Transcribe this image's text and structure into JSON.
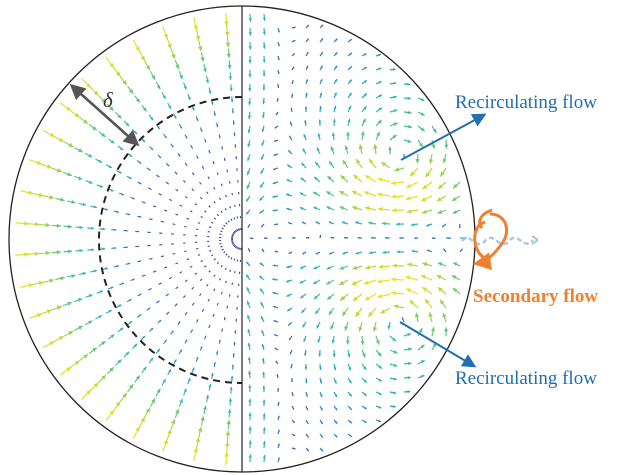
{
  "annotations": {
    "delta_symbol": "δ",
    "recirculating_upper": "Recirculating flow",
    "recirculating_lower": "Recirculating flow",
    "secondary": "Secondary flow"
  },
  "colors": {
    "annotation_blue": "#1f6fb2",
    "secondary_orange": "#f07f2e",
    "outline": "#222222",
    "dimension_gray": "#555555",
    "vector_ramp": [
      "#3b2f8f",
      "#2f6fbf",
      "#2aa9c9",
      "#4cc48a",
      "#b6d936",
      "#f2e019"
    ]
  }
}
